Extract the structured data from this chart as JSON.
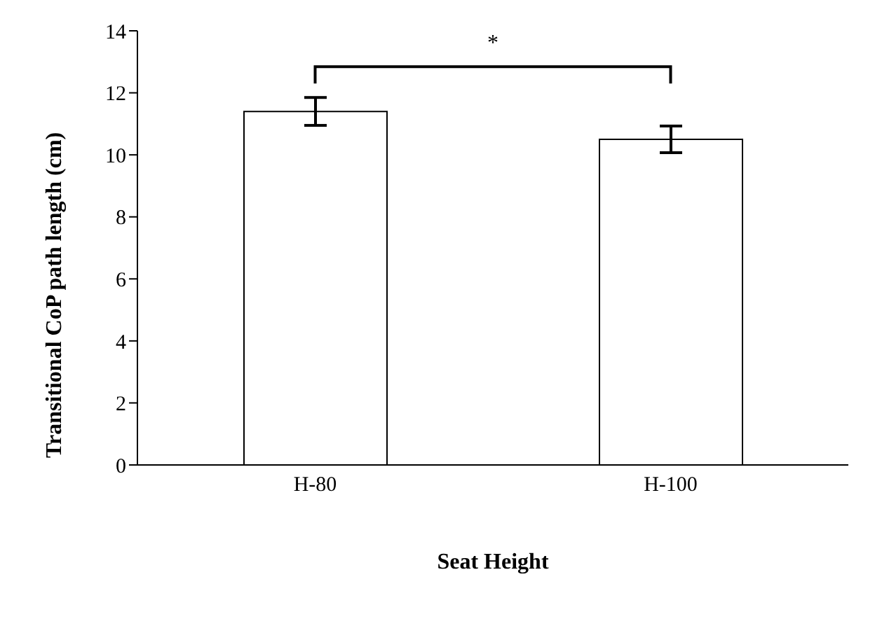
{
  "chart_data": {
    "type": "bar",
    "xlabel": "Seat Height",
    "ylabel": "Transitional CoP path length (cm)",
    "categories": [
      "H-80",
      "H-100"
    ],
    "values": [
      11.4,
      10.5
    ],
    "errors": [
      0.45,
      0.43
    ],
    "color": "#ffffff",
    "ylim": [
      0,
      14
    ],
    "yticks": [
      0,
      2,
      4,
      6,
      8,
      10,
      12,
      14
    ],
    "annotations": [
      "*"
    ]
  }
}
